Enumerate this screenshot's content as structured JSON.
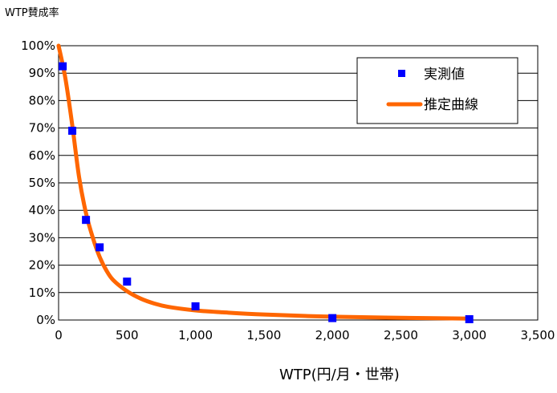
{
  "chart_data": {
    "type": "scatter",
    "ylabel": "WTP賛成率",
    "xlabel": "WTP(円/月・世帯)",
    "xlim": [
      0,
      3500
    ],
    "ylim": [
      0,
      100
    ],
    "x_ticks": [
      0,
      500,
      1000,
      1500,
      2000,
      2500,
      3000,
      3500
    ],
    "x_tick_labels": [
      "0",
      "500",
      "1,000",
      "1,500",
      "2,000",
      "2,500",
      "3,000",
      "3,500"
    ],
    "y_ticks": [
      0,
      10,
      20,
      30,
      40,
      50,
      60,
      70,
      80,
      90,
      100
    ],
    "y_tick_labels": [
      "0%",
      "10%",
      "20%",
      "30%",
      "40%",
      "50%",
      "60%",
      "70%",
      "80%",
      "90%",
      "100%"
    ],
    "grid": true,
    "legend_position": "top-right",
    "series": [
      {
        "name": "実測値",
        "kind": "scatter",
        "color": "#0000FF",
        "x": [
          30,
          100,
          200,
          300,
          500,
          1000,
          2000,
          3000
        ],
        "y": [
          92.5,
          69,
          36.5,
          26.5,
          14,
          5,
          0.7,
          0.3
        ]
      },
      {
        "name": "推定曲線",
        "kind": "line",
        "color": "#FF6600",
        "x": [
          0,
          50,
          100,
          150,
          200,
          250,
          300,
          350,
          400,
          500,
          600,
          700,
          800,
          1000,
          1200,
          1500,
          2000,
          2500,
          3000
        ],
        "y": [
          100,
          88,
          71,
          52,
          39,
          30,
          23,
          18,
          14.5,
          10.5,
          7.8,
          6,
          4.8,
          3.5,
          2.8,
          2,
          1.2,
          0.8,
          0.5
        ]
      }
    ]
  }
}
